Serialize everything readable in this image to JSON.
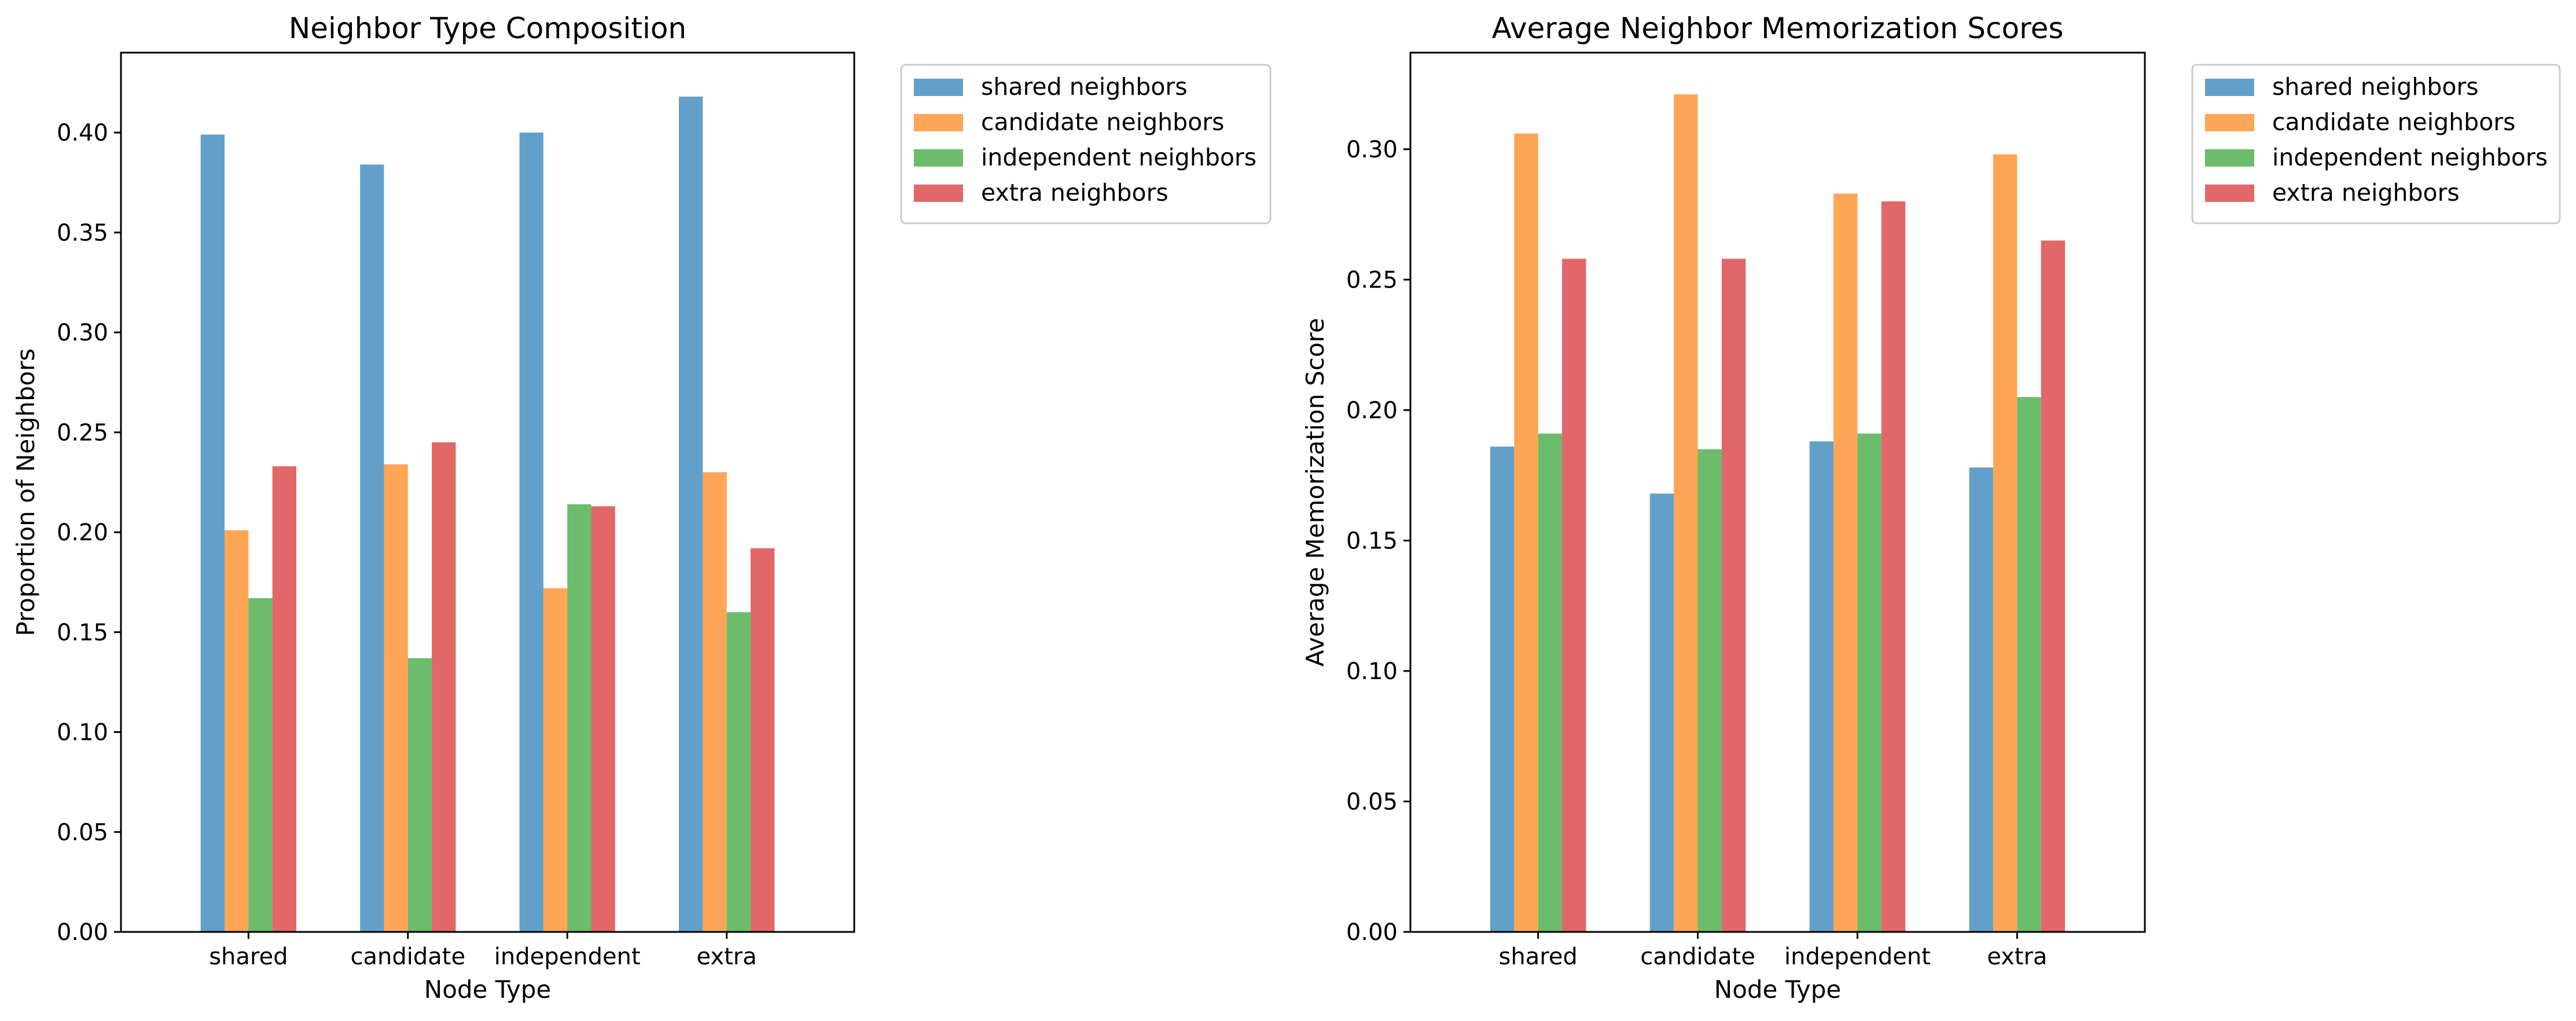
{
  "chart_data": [
    {
      "type": "bar",
      "title": "Neighbor Type Composition",
      "xlabel": "Node Type",
      "ylabel": "Proportion of Neighbors",
      "categories": [
        "shared",
        "candidate",
        "independent",
        "extra"
      ],
      "series": [
        {
          "name": "shared neighbors",
          "color": "#1f77b4",
          "values": [
            0.399,
            0.384,
            0.4,
            0.418
          ]
        },
        {
          "name": "candidate neighbors",
          "color": "#ff7f0e",
          "values": [
            0.201,
            0.234,
            0.172,
            0.23
          ]
        },
        {
          "name": "independent neighbors",
          "color": "#2ca02c",
          "values": [
            0.167,
            0.137,
            0.214,
            0.16
          ]
        },
        {
          "name": "extra neighbors",
          "color": "#d62728",
          "values": [
            0.233,
            0.245,
            0.213,
            0.192
          ]
        }
      ],
      "ylim": [
        0,
        0.44
      ],
      "yticks": [
        0.0,
        0.05,
        0.1,
        0.15,
        0.2,
        0.25,
        0.3,
        0.35,
        0.4
      ],
      "ytick_labels": [
        "0.00",
        "0.05",
        "0.10",
        "0.15",
        "0.20",
        "0.25",
        "0.30",
        "0.35",
        "0.40"
      ],
      "grid": false,
      "legend": "outside upper-right",
      "bar_opacity": 0.7
    },
    {
      "type": "bar",
      "title": "Average Neighbor Memorization Scores",
      "xlabel": "Node Type",
      "ylabel": "Average Memorization Score",
      "categories": [
        "shared",
        "candidate",
        "independent",
        "extra"
      ],
      "series": [
        {
          "name": "shared neighbors",
          "color": "#1f77b4",
          "values": [
            0.186,
            0.168,
            0.188,
            0.178
          ]
        },
        {
          "name": "candidate neighbors",
          "color": "#ff7f0e",
          "values": [
            0.306,
            0.321,
            0.283,
            0.298
          ]
        },
        {
          "name": "independent neighbors",
          "color": "#2ca02c",
          "values": [
            0.191,
            0.185,
            0.191,
            0.205
          ]
        },
        {
          "name": "extra neighbors",
          "color": "#d62728",
          "values": [
            0.258,
            0.258,
            0.28,
            0.265
          ]
        }
      ],
      "ylim": [
        0,
        0.337
      ],
      "yticks": [
        0.0,
        0.05,
        0.1,
        0.15,
        0.2,
        0.25,
        0.3
      ],
      "ytick_labels": [
        "0.00",
        "0.05",
        "0.10",
        "0.15",
        "0.20",
        "0.25",
        "0.30"
      ],
      "grid": false,
      "legend": "outside upper-right",
      "bar_opacity": 0.7
    }
  ]
}
